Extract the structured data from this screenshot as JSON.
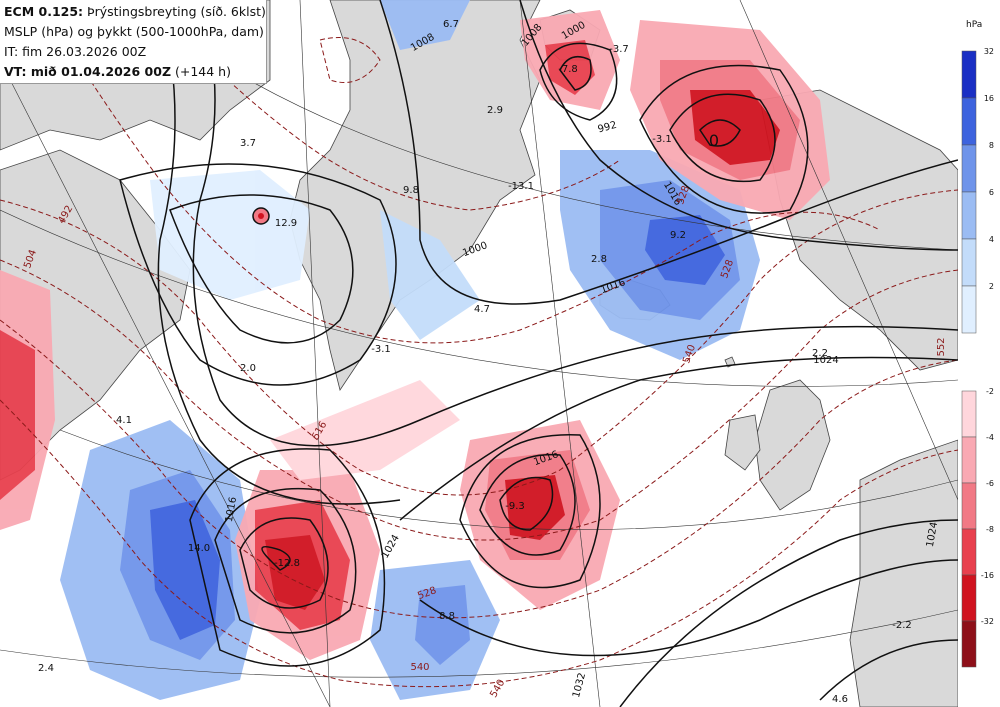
{
  "header": {
    "model": "ECM 0.125:",
    "product": "Þrýstingsbreyting (síð. 6klst)",
    "line2": "MSLP (hPa) og þykkt (500-1000hPa, dam)",
    "line3": "IT: fim 26.03.2026 00Z",
    "valid_label": "VT: mið 01.04.2026 00Z",
    "valid_suffix": "(+144 h)"
  },
  "legend": {
    "unit": "hPa",
    "rise_ticks": [
      "32",
      "16",
      "8",
      "6",
      "4",
      "2"
    ],
    "fall_ticks": [
      "-2",
      "-4",
      "-6",
      "-8",
      "-16",
      "-32"
    ],
    "rise_colors": [
      "#1a2fc4",
      "#3d63de",
      "#6f94ea",
      "#9bbcf3",
      "#c3dcfa",
      "#e0efff"
    ],
    "fall_colors": [
      "#ffd6dc",
      "#f9a9b3",
      "#f17985",
      "#e8404e",
      "#d0131f",
      "#8e1019"
    ]
  },
  "isobar_labels": [
    "1000",
    "1008",
    "1008",
    "1016",
    "1024",
    "1024",
    "1024",
    "1032",
    "1016",
    "992",
    "1000",
    "1016",
    "1016"
  ],
  "thickness_labels": [
    "492",
    "504",
    "516",
    "528",
    "540",
    "540",
    "528",
    "552",
    "528",
    "540"
  ],
  "pressure_change_labels": [
    "6.7",
    "2.9",
    "-3.1",
    "-3.7",
    "-7.8",
    "9.2",
    "2.8",
    "4.7",
    "12.9",
    "-3.1",
    "2.0",
    "4.1",
    "14.0",
    "-12.8",
    "-9.3",
    "8.8",
    "2.4",
    "-13.1",
    "2.2",
    "-2.2",
    "4.6",
    "9.8",
    "0",
    "3.7"
  ],
  "colors": {
    "land": "#d9d9d9",
    "sea": "#ffffff",
    "isobar": "#111111",
    "thickness": "#8b1a1a"
  }
}
